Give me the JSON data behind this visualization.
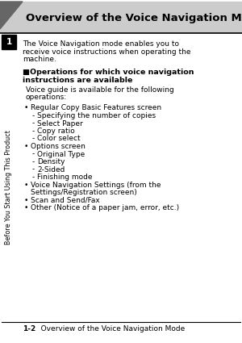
{
  "bg_color": "#ffffff",
  "title": "Overview of the Voice Navigation Mode",
  "chapter_num": "1",
  "sidebar_text": "Before You Start Using This Product",
  "body_intro_lines": [
    "The Voice Navigation mode enables you to",
    "receive voice instructions when operating the",
    "machine."
  ],
  "section_header_lines": [
    "■Operations for which voice navigation",
    "instructions are available"
  ],
  "section_sub_lines": [
    "Voice guide is available for the following",
    "operations:"
  ],
  "bullet_items": [
    {
      "bullet": "•",
      "text": "Regular Copy Basic Features screen",
      "level": 0
    },
    {
      "bullet": "-",
      "text": "Specifying the number of copies",
      "level": 1
    },
    {
      "bullet": "-",
      "text": "Select Paper",
      "level": 1
    },
    {
      "bullet": "-",
      "text": "Copy ratio",
      "level": 1
    },
    {
      "bullet": "-",
      "text": "Color select",
      "level": 1
    },
    {
      "bullet": "•",
      "text": "Options screen",
      "level": 0
    },
    {
      "bullet": "-",
      "text": "Original Type",
      "level": 1
    },
    {
      "bullet": "-",
      "text": "Density",
      "level": 1
    },
    {
      "bullet": "-",
      "text": "2-Sided",
      "level": 1
    },
    {
      "bullet": "-",
      "text": "Finishing mode",
      "level": 1
    },
    {
      "bullet": "•",
      "text": "Voice Navigation Settings (from the",
      "level": 0
    },
    {
      "bullet": " ",
      "text": "Settings/Registration screen)",
      "level": 0
    },
    {
      "bullet": "•",
      "text": "Scan and Send/Fax",
      "level": 0
    },
    {
      "bullet": "•",
      "text": "Other (Notice of a paper jam, error, etc.)",
      "level": 0
    }
  ],
  "footer_left": "1-2",
  "footer_text": "   Overview of the Voice Navigation Mode",
  "title_bar_color": "#cccccc",
  "arrow_color": "#666666",
  "line_color": "#000000",
  "chapter_box_color": "#000000",
  "chapter_text_color": "#ffffff",
  "title_fontsize": 9.5,
  "body_fontsize": 6.5,
  "section_fontsize": 6.8,
  "sidebar_fontsize": 5.8,
  "footer_fontsize": 6.5
}
